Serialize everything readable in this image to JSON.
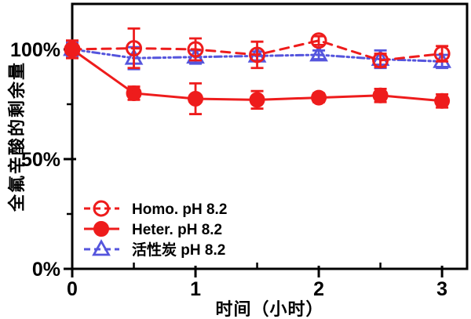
{
  "chart_data": {
    "type": "line",
    "title": "",
    "xlabel": "时间（小时）",
    "ylabel": "全氟辛酸的剩余量",
    "x": [
      0,
      0.5,
      1,
      1.5,
      2,
      2.5,
      3
    ],
    "series": [
      {
        "name": "Homo. pH 8.2",
        "color": "#ee1c1c",
        "marker": "open-circle",
        "line": "dashed",
        "values": [
          100,
          100.5,
          100,
          97.5,
          104,
          95,
          98
        ],
        "errors": [
          4,
          9,
          5,
          6,
          2,
          3,
          3.5
        ]
      },
      {
        "name": "Heter. pH 8.2",
        "color": "#ee1c1c",
        "marker": "filled-circle",
        "line": "solid",
        "values": [
          100,
          80,
          77.5,
          77,
          78,
          79,
          76.5
        ],
        "errors": [
          4,
          3,
          7,
          4,
          2,
          3,
          3
        ]
      },
      {
        "name": "活性炭 pH 8.2",
        "color": "#5555dd",
        "marker": "open-triangle",
        "line": "dashdot",
        "values": [
          100,
          96,
          96.5,
          97,
          97.5,
          95.5,
          94.5
        ],
        "errors": [
          3,
          5,
          3,
          2,
          2,
          4,
          3
        ]
      }
    ],
    "yticks": [
      {
        "v": 0,
        "label": "0%"
      },
      {
        "v": 50,
        "label": "50%"
      },
      {
        "v": 100,
        "label": "100%"
      }
    ],
    "yminor": [
      25,
      75
    ],
    "xticks": [
      {
        "v": 0,
        "label": "0"
      },
      {
        "v": 1,
        "label": "1"
      },
      {
        "v": 2,
        "label": "2"
      },
      {
        "v": 3,
        "label": "3"
      }
    ],
    "xminor": [
      0.5,
      1.5,
      2.5
    ],
    "xlim": [
      0,
      3.203
    ],
    "ylim": [
      0,
      120.7
    ],
    "grid": false,
    "legend_position": "lower-left",
    "frame_color": "#000000",
    "tick_label_color": "#000000"
  }
}
